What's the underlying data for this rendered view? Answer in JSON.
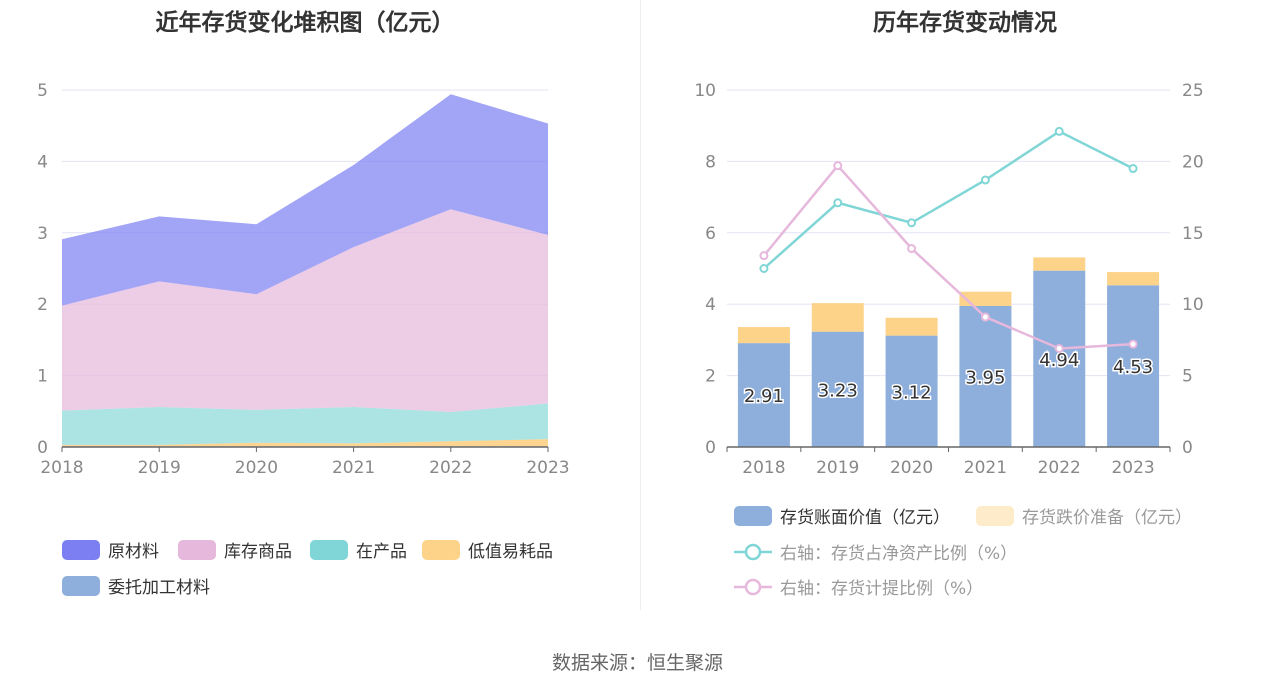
{
  "source_text": "数据来源：恒生聚源",
  "colors": {
    "raw": "#7b7ff2",
    "goods": "#e6b8dc",
    "wip": "#80d6d6",
    "consumables": "#fdd38a",
    "consign": "#8eaedc",
    "book": "#8eaedc",
    "provision": "#fdd38a",
    "net_ratio": "#80d6d6",
    "prov_ratio": "#e6b8dc"
  },
  "chart_data": [
    {
      "type": "area",
      "title": "近年存货变化堆积图（亿元）",
      "categories": [
        "2018",
        "2019",
        "2020",
        "2021",
        "2022",
        "2023"
      ],
      "ylim": [
        0,
        5
      ],
      "yticks": [
        "0",
        "1",
        "2",
        "3",
        "4",
        "5"
      ],
      "series": [
        {
          "name": "委托加工材料",
          "values": [
            0.01,
            0.01,
            0.01,
            0.01,
            0.01,
            0.01
          ]
        },
        {
          "name": "低值易耗品",
          "values": [
            0.02,
            0.02,
            0.05,
            0.04,
            0.07,
            0.1
          ]
        },
        {
          "name": "在产品",
          "values": [
            0.48,
            0.53,
            0.46,
            0.51,
            0.41,
            0.5
          ]
        },
        {
          "name": "库存商品",
          "values": [
            1.47,
            1.76,
            1.62,
            2.24,
            2.84,
            2.36
          ]
        },
        {
          "name": "原材料",
          "values": [
            0.93,
            0.91,
            0.98,
            1.15,
            1.61,
            1.56
          ]
        }
      ],
      "legend": [
        "原材料",
        "库存商品",
        "在产品",
        "低值易耗品",
        "委托加工材料"
      ]
    },
    {
      "type": "bar+line",
      "title": "历年存货变动情况",
      "categories": [
        "2018",
        "2019",
        "2020",
        "2021",
        "2022",
        "2023"
      ],
      "ylim_left": [
        0,
        10
      ],
      "ylim_right": [
        0,
        25
      ],
      "yticks_left": [
        "0",
        "2",
        "4",
        "6",
        "8",
        "10"
      ],
      "yticks_right": [
        "0",
        "5",
        "10",
        "15",
        "20",
        "25"
      ],
      "bars": [
        {
          "name": "存货账面价值（亿元）",
          "values": [
            2.91,
            3.23,
            3.12,
            3.95,
            4.94,
            4.53
          ],
          "labels": [
            "2.91",
            "3.23",
            "3.12",
            "3.95",
            "4.94",
            "4.53"
          ]
        },
        {
          "name": "存货跌价准备（亿元）",
          "values": [
            0.45,
            0.8,
            0.5,
            0.4,
            0.37,
            0.37
          ]
        }
      ],
      "lines": [
        {
          "name": "右轴：存货占净资产比例（%）",
          "values": [
            12.5,
            17.1,
            15.7,
            18.7,
            22.1,
            19.5
          ]
        },
        {
          "name": "右轴：存货计提比例（%）",
          "values": [
            13.4,
            19.7,
            13.9,
            9.1,
            6.9,
            7.2
          ]
        }
      ]
    }
  ]
}
